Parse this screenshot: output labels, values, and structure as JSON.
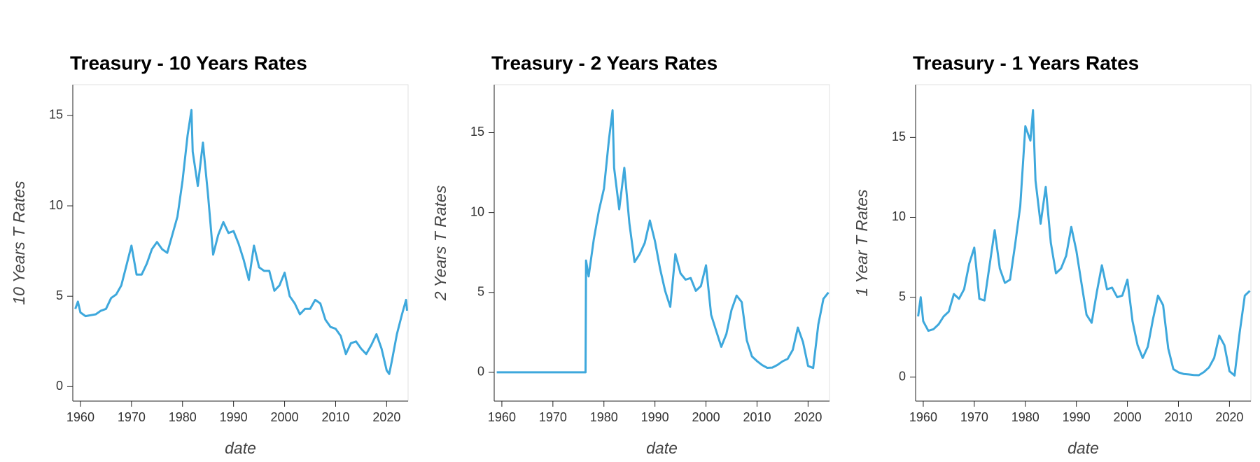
{
  "chart_data": [
    {
      "type": "line",
      "title": "Treasury - 10 Years Rates",
      "x_label": "date",
      "y_label": "10 Years T Rates",
      "xlim": [
        1958.5,
        2024.2
      ],
      "xticks": [
        1960,
        1970,
        1980,
        1990,
        2000,
        2010,
        2020
      ],
      "ylim": [
        -0.8,
        16.7
      ],
      "yticks": [
        0,
        5,
        10,
        15
      ],
      "series": [
        {
          "name": "10 Years T Rates",
          "color": "#3ea8dc",
          "x": [
            1959,
            1959.5,
            1960,
            1961,
            1962,
            1963,
            1964,
            1965,
            1966,
            1967,
            1968,
            1969,
            1970,
            1971,
            1972,
            1973,
            1974,
            1975,
            1976,
            1977,
            1978,
            1979,
            1980,
            1981,
            1981.75,
            1982,
            1983,
            1984,
            1985,
            1986,
            1987,
            1988,
            1989,
            1990,
            1991,
            1992,
            1993,
            1994,
            1995,
            1996,
            1997,
            1998,
            1999,
            2000,
            2001,
            2002,
            2003,
            2004,
            2005,
            2006,
            2007,
            2008,
            2009,
            2010,
            2011,
            2012,
            2013,
            2014,
            2015,
            2016,
            2017,
            2018,
            2019,
            2020,
            2020.5,
            2021,
            2022,
            2023,
            2023.8,
            2024
          ],
          "values": [
            4.3,
            4.7,
            4.1,
            3.9,
            3.95,
            4.0,
            4.2,
            4.3,
            4.9,
            5.1,
            5.6,
            6.7,
            7.8,
            6.2,
            6.2,
            6.8,
            7.6,
            8.0,
            7.6,
            7.4,
            8.4,
            9.4,
            11.4,
            13.9,
            15.3,
            13.0,
            11.1,
            13.5,
            10.6,
            7.3,
            8.4,
            9.1,
            8.5,
            8.6,
            7.9,
            7.0,
            5.9,
            7.8,
            6.6,
            6.4,
            6.4,
            5.3,
            5.6,
            6.3,
            5.0,
            4.6,
            4.0,
            4.3,
            4.3,
            4.8,
            4.6,
            3.7,
            3.3,
            3.2,
            2.8,
            1.8,
            2.4,
            2.5,
            2.1,
            1.8,
            2.3,
            2.9,
            2.1,
            0.9,
            0.7,
            1.4,
            2.9,
            4.0,
            4.8,
            4.2
          ]
        }
      ]
    },
    {
      "type": "line",
      "title": "Treasury - 2 Years Rates",
      "x_label": "date",
      "y_label": "2 Years T Rates",
      "xlim": [
        1958.5,
        2024.2
      ],
      "xticks": [
        1960,
        1970,
        1980,
        1990,
        2000,
        2010,
        2020
      ],
      "ylim": [
        -1.8,
        18
      ],
      "yticks": [
        0,
        5,
        10,
        15
      ],
      "series": [
        {
          "name": "2 Years T Rates",
          "color": "#3ea8dc",
          "x": [
            1959,
            1976.4,
            1976.5,
            1977,
            1978,
            1979,
            1980,
            1981,
            1981.7,
            1982,
            1983,
            1984,
            1985,
            1986,
            1987,
            1988,
            1989,
            1990,
            1991,
            1992,
            1993,
            1994,
            1995,
            1996,
            1997,
            1998,
            1999,
            2000,
            2001,
            2002,
            2003,
            2004,
            2005,
            2006,
            2007,
            2008,
            2009,
            2010,
            2011,
            2012,
            2013,
            2014,
            2015,
            2016,
            2017,
            2018,
            2019,
            2020,
            2021,
            2022,
            2023,
            2024
          ],
          "values": [
            0,
            0,
            7.0,
            6.0,
            8.3,
            10.1,
            11.5,
            14.6,
            16.4,
            12.8,
            10.2,
            12.8,
            9.3,
            6.9,
            7.4,
            8.1,
            9.5,
            8.2,
            6.5,
            5.1,
            4.1,
            7.4,
            6.2,
            5.8,
            5.9,
            5.1,
            5.4,
            6.7,
            3.6,
            2.6,
            1.6,
            2.4,
            3.9,
            4.8,
            4.4,
            2.0,
            1.0,
            0.7,
            0.45,
            0.28,
            0.3,
            0.46,
            0.69,
            0.84,
            1.4,
            2.8,
            1.9,
            0.4,
            0.27,
            2.99,
            4.6,
            5.0
          ]
        }
      ]
    },
    {
      "type": "line",
      "title": "Treasury - 1 Years Rates",
      "x_label": "date",
      "y_label": "1 Year T Rates",
      "xlim": [
        1958.5,
        2024.2
      ],
      "xticks": [
        1960,
        1970,
        1980,
        1990,
        2000,
        2010,
        2020
      ],
      "ylim": [
        -1.5,
        18.3
      ],
      "yticks": [
        0,
        5,
        10,
        15
      ],
      "series": [
        {
          "name": "1 Year T Rates",
          "color": "#3ea8dc",
          "x": [
            1959,
            1959.5,
            1960,
            1961,
            1962,
            1963,
            1964,
            1965,
            1966,
            1967,
            1968,
            1969,
            1970,
            1971,
            1972,
            1973,
            1974,
            1975,
            1976,
            1977,
            1978,
            1979,
            1980,
            1981,
            1981.5,
            1982,
            1983,
            1984,
            1985,
            1986,
            1987,
            1988,
            1989,
            1990,
            1991,
            1992,
            1993,
            1994,
            1995,
            1996,
            1997,
            1998,
            1999,
            2000,
            2001,
            2002,
            2003,
            2004,
            2005,
            2006,
            2007,
            2008,
            2009,
            2010,
            2011,
            2012,
            2013,
            2014,
            2015,
            2016,
            2017,
            2018,
            2019,
            2020,
            2021,
            2022,
            2023,
            2024
          ],
          "values": [
            3.8,
            5.0,
            3.5,
            2.9,
            3.0,
            3.3,
            3.8,
            4.1,
            5.2,
            4.9,
            5.5,
            7.1,
            8.1,
            4.9,
            4.8,
            7.0,
            9.2,
            6.8,
            5.9,
            6.1,
            8.3,
            10.7,
            15.7,
            14.8,
            16.7,
            12.3,
            9.6,
            11.9,
            8.4,
            6.5,
            6.8,
            7.6,
            9.4,
            7.9,
            5.9,
            3.9,
            3.4,
            5.3,
            7.0,
            5.5,
            5.6,
            5.0,
            5.1,
            6.1,
            3.5,
            2.0,
            1.2,
            1.9,
            3.6,
            5.1,
            4.5,
            1.8,
            0.5,
            0.3,
            0.2,
            0.17,
            0.13,
            0.12,
            0.32,
            0.61,
            1.2,
            2.6,
            2.0,
            0.37,
            0.1,
            2.8,
            5.1,
            5.4
          ]
        }
      ]
    }
  ]
}
